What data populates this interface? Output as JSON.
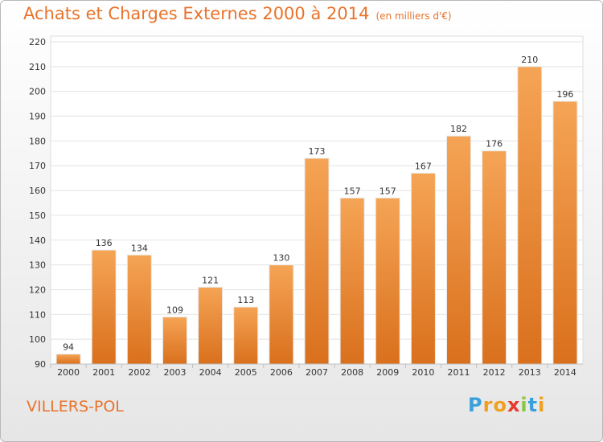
{
  "header": {
    "title": "Achats et Charges Externes 2000 à 2014",
    "subtitle": "(en milliers d'€)"
  },
  "footer": {
    "place_name": "VILLERS-POL",
    "brand": {
      "letters": [
        "P",
        "r",
        "o",
        "x",
        "i",
        "t",
        "i"
      ],
      "colors": [
        "#3aa0dc",
        "#f0a020",
        "#f0a020",
        "#e83a2a",
        "#8cc63f",
        "#3aa0dc",
        "#f0a020"
      ]
    }
  },
  "chart_data": {
    "type": "bar",
    "categories": [
      "2000",
      "2001",
      "2002",
      "2003",
      "2004",
      "2005",
      "2006",
      "2007",
      "2008",
      "2009",
      "2010",
      "2011",
      "2012",
      "2013",
      "2014"
    ],
    "values": [
      94,
      136,
      134,
      109,
      121,
      113,
      130,
      173,
      157,
      157,
      167,
      182,
      176,
      210,
      196
    ],
    "title": "Achats et Charges Externes 2000 à 2014",
    "xlabel": "",
    "ylabel": "",
    "ylim": [
      90,
      220
    ],
    "yticks": [
      90,
      100,
      110,
      120,
      130,
      140,
      150,
      160,
      170,
      180,
      190,
      200,
      210,
      220
    ],
    "grid": true,
    "bar_color": "#ef8e3c",
    "bar_color_dark": "#d9701d"
  }
}
